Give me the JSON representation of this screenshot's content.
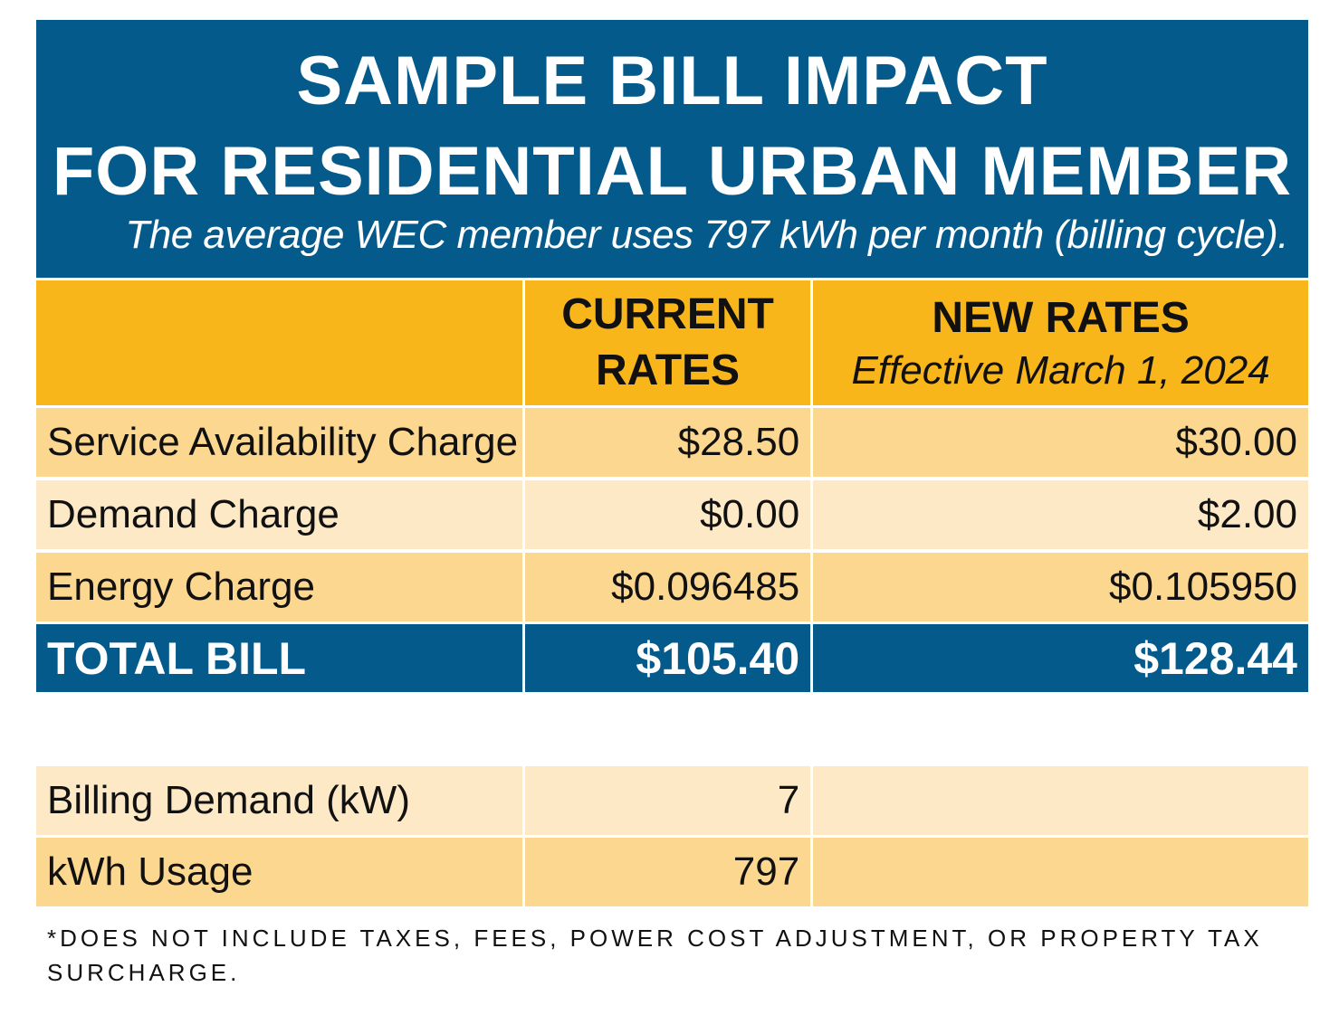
{
  "header": {
    "title_line1": "SAMPLE BILL IMPACT",
    "title_line2": "FOR RESIDENTIAL URBAN MEMBER",
    "subtitle": "The average WEC member uses 797 kWh per month (billing cycle)."
  },
  "columns": {
    "current_line1": "CURRENT",
    "current_line2": "RATES",
    "new_line1": "NEW RATES",
    "new_line2": "Effective March 1, 2024"
  },
  "rows": [
    {
      "label": "Service Availability Charge",
      "current": "$28.50",
      "new": "$30.00"
    },
    {
      "label": "Demand Charge",
      "current": "$0.00",
      "new": "$2.00"
    },
    {
      "label": "Energy Charge",
      "current": "$0.096485",
      "new": "$0.105950"
    }
  ],
  "total": {
    "label": "TOTAL BILL",
    "current": "$105.40",
    "new": "$128.44"
  },
  "usage": [
    {
      "label": "Billing Demand (kW)",
      "value": "7"
    },
    {
      "label": "kWh Usage",
      "value": "797"
    }
  ],
  "footnote": "*DOES NOT INCLUDE TAXES, FEES, POWER COST ADJUSTMENT, OR PROPERTY TAX SURCHARGE.",
  "colors": {
    "blue": "#045a8a",
    "gold": "#f8b61b",
    "row_dark": "#fcd78f",
    "row_light": "#fde9c6"
  }
}
